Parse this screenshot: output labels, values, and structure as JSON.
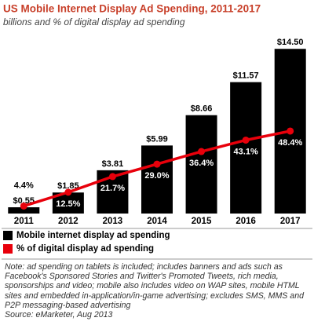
{
  "chart_data": {
    "type": "bar_line",
    "title": "US Mobile Internet Display Ad Spending, 2011-2017",
    "subtitle": "billions and % of digital display ad spending",
    "categories": [
      "2011",
      "2012",
      "2013",
      "2014",
      "2015",
      "2016",
      "2017"
    ],
    "series": [
      {
        "name": "Mobile internet display ad spending",
        "type": "bar",
        "color": "#000000",
        "values": [
          0.55,
          1.85,
          3.81,
          5.99,
          8.66,
          11.57,
          14.5
        ],
        "value_labels": [
          "$0.55",
          "$1.85",
          "$3.81",
          "$5.99",
          "$8.66",
          "$11.57",
          "$14.50"
        ]
      },
      {
        "name": "% of digital display ad spending",
        "type": "line",
        "axis": "y2",
        "color": "#e8000b",
        "values": [
          4.4,
          12.5,
          21.7,
          29.0,
          36.4,
          43.1,
          48.4
        ],
        "value_labels": [
          "4.4%",
          "12.5%",
          "21.7%",
          "29.0%",
          "36.4%",
          "43.1%",
          "48.4%"
        ]
      }
    ],
    "ylim": [
      0,
      15
    ],
    "y2lim": [
      0,
      100
    ],
    "note": "Note: ad spending on tablets is included; includes banners and ads such as Facebook's Sponsored Stories and Twitter's Promoted Tweets, rich media, sponsorships and video; mobile also includes video on WAP sites, mobile HTML sites and embedded in-application/in-game advertising; excludes SMS, MMS and P2P messaging-based advertising",
    "source": "Source: eMarketer, Aug 2013"
  }
}
